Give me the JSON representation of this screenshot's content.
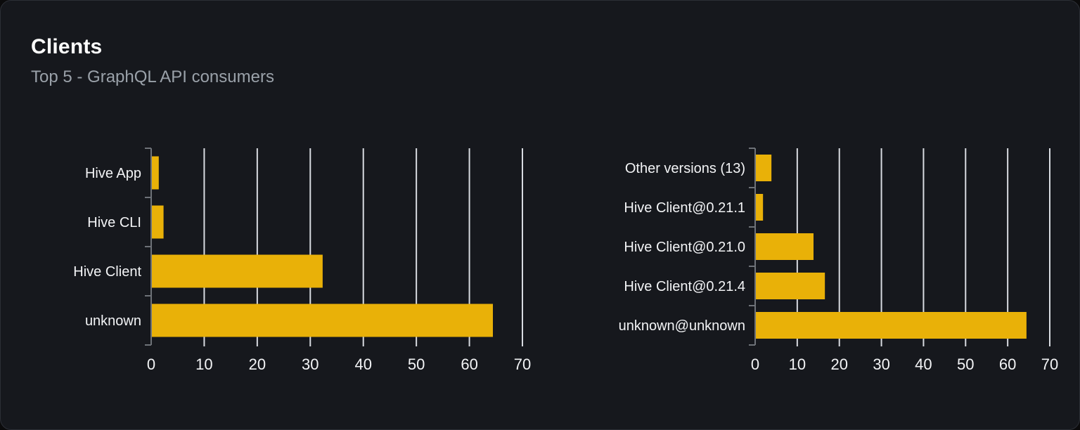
{
  "card": {
    "title": "Clients",
    "subtitle": "Top 5 - GraphQL API consumers"
  },
  "colors": {
    "bar": "#e9b108",
    "card_bg": "#16181d",
    "page_bg": "#0b0b0c",
    "card_border": "#2c2f36",
    "gridline": "#d8dbe1",
    "axis": "#6e7278",
    "title_text": "#ffffff",
    "subtitle_text": "#9aa1a9",
    "label_text": "#f3f4f6"
  },
  "chart_data": [
    {
      "type": "bar",
      "orientation": "horizontal",
      "name": "clients-by-name",
      "categories": [
        "Hive App",
        "Hive CLI",
        "Hive Client",
        "unknown"
      ],
      "values": [
        1.3,
        2.2,
        32.2,
        64.3
      ],
      "xlabel": "",
      "ylabel": "",
      "xlim": [
        0,
        70
      ],
      "xticks": [
        0,
        10,
        20,
        30,
        40,
        50,
        60,
        70
      ],
      "grid": true,
      "legend": "none"
    },
    {
      "type": "bar",
      "orientation": "horizontal",
      "name": "clients-by-version",
      "categories": [
        "Other versions (13)",
        "Hive Client@0.21.1",
        "Hive Client@0.21.0",
        "Hive Client@0.21.4",
        "unknown@unknown"
      ],
      "values": [
        3.7,
        1.7,
        13.7,
        16.4,
        64.3
      ],
      "xlabel": "",
      "ylabel": "",
      "xlim": [
        0,
        70
      ],
      "xticks": [
        0,
        10,
        20,
        30,
        40,
        50,
        60,
        70
      ],
      "grid": true,
      "legend": "none"
    }
  ]
}
